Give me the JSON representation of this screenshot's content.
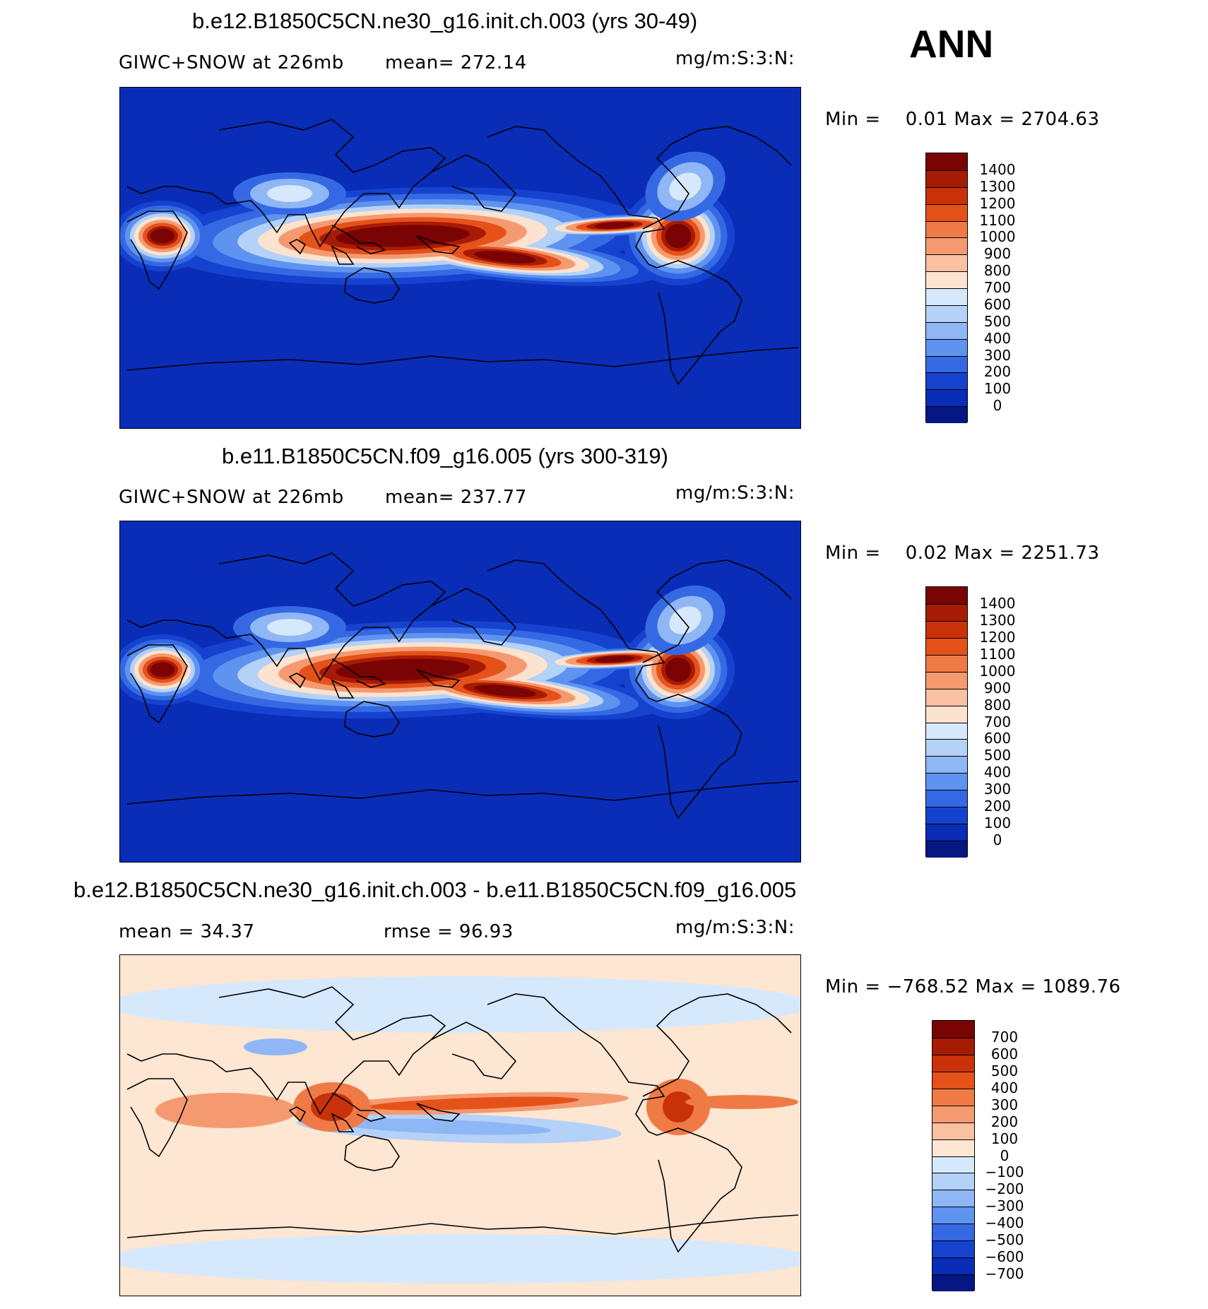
{
  "season": "ANN",
  "panels": [
    {
      "title": "b.e12.B1850C5CN.ne30_g16.init.ch.003 (yrs 30-49)",
      "left_label": "GIWC+SNOW at 226mb",
      "mid_label": "mean= 272.14",
      "units": "mg/m:S:3:N:",
      "minmax": "Min =    0.01 Max = 2704.63",
      "background": "#0a2db8"
    },
    {
      "title": "b.e11.B1850C5CN.f09_g16.005 (yrs 300-319)",
      "left_label": "GIWC+SNOW at 226mb",
      "mid_label": "mean= 237.77",
      "units": "mg/m:S:3:N:",
      "minmax": "Min =    0.02 Max = 2251.73",
      "background": "#0a2db8"
    },
    {
      "title": "b.e12.B1850C5CN.ne30_g16.init.ch.003 - b.e11.B1850C5CN.f09_g16.005",
      "left_label": "mean =   34.37",
      "mid_label": "rmse =   96.93",
      "units": "mg/m:S:3:N:",
      "minmax": "Min = −768.52 Max = 1089.76",
      "background": "#fde6d2"
    }
  ],
  "colorbars": {
    "absolute": {
      "labels": [
        "1400",
        "1300",
        "1200",
        "1100",
        "1000",
        "900",
        "800",
        "700",
        "600",
        "500",
        "400",
        "300",
        "200",
        "100",
        "0"
      ],
      "colors": [
        "#7a0403",
        "#a71b05",
        "#c93209",
        "#e4521a",
        "#f07a45",
        "#f59a70",
        "#f9c0a2",
        "#fce3cf",
        "#d6e8fb",
        "#b4d1f8",
        "#8fb6f5",
        "#5f93f0",
        "#3569e4",
        "#1543d0",
        "#0a2db8",
        "#041783"
      ]
    },
    "difference": {
      "labels": [
        "700",
        "600",
        "500",
        "400",
        "300",
        "200",
        "100",
        "0",
        "−100",
        "−200",
        "−300",
        "−400",
        "−500",
        "−600",
        "−700"
      ],
      "colors": [
        "#7a0403",
        "#a71b05",
        "#c93209",
        "#e4521a",
        "#f07a45",
        "#f59a70",
        "#f9c0a2",
        "#fde6d2",
        "#d6e8fb",
        "#b4d1f8",
        "#8fb6f5",
        "#5f93f0",
        "#3569e4",
        "#1543d0",
        "#0a2db8",
        "#041783"
      ]
    }
  }
}
